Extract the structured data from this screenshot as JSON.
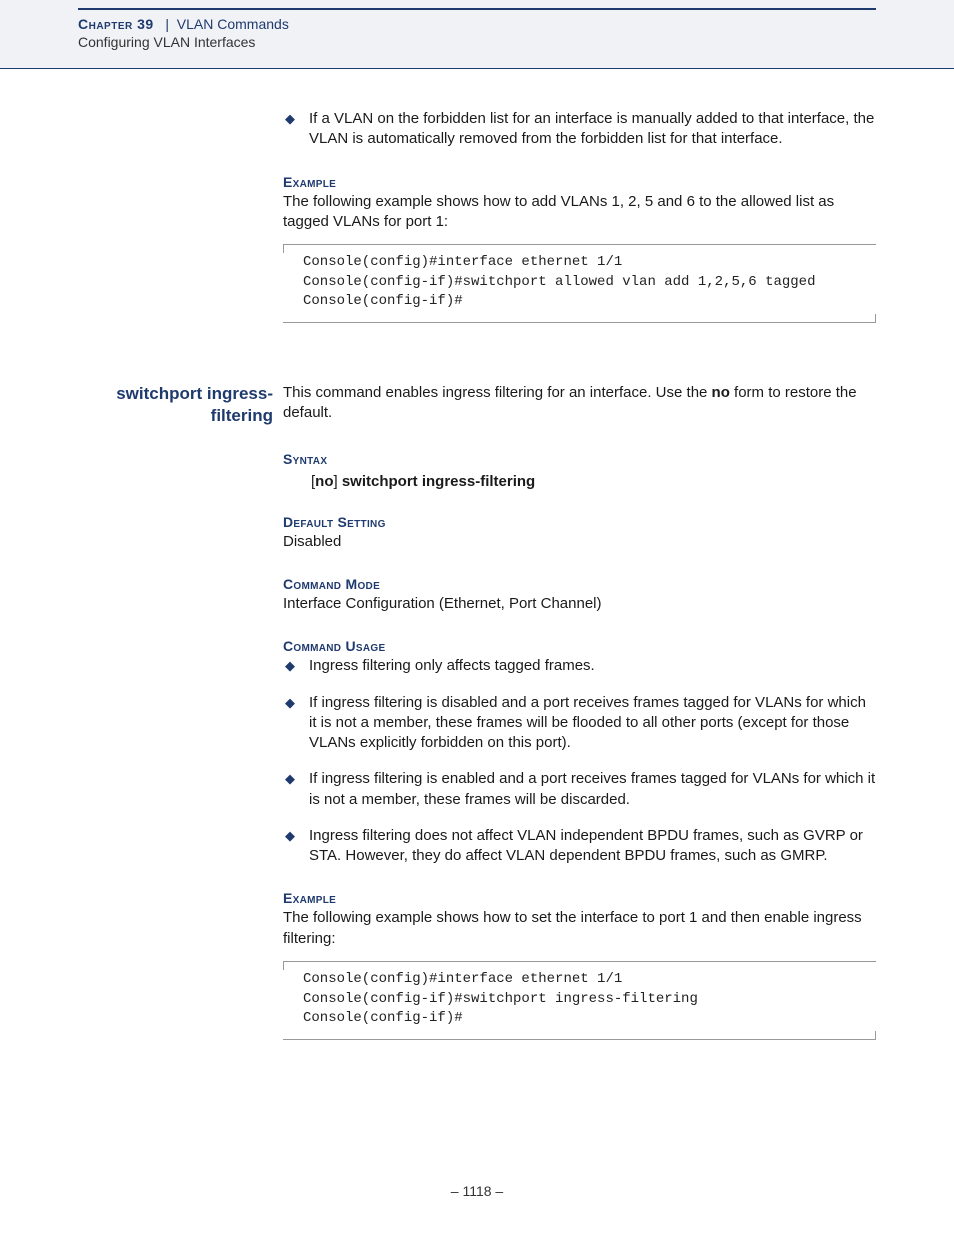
{
  "header": {
    "chapter_label": "Chapter 39",
    "separator": "|",
    "chapter_title": "VLAN Commands",
    "subtitle": "Configuring VLAN Interfaces"
  },
  "section1": {
    "bullet1": "If a VLAN on the forbidden list for an interface is manually added to that interface, the VLAN is automatically removed from the forbidden list for that interface.",
    "example_label": "Example",
    "example_intro": "The following example shows how to add VLANs 1, 2, 5 and 6 to the allowed list as tagged VLANs for port 1:",
    "code": "Console(config)#interface ethernet 1/1\nConsole(config-if)#switchport allowed vlan add 1,2,5,6 tagged\nConsole(config-if)#"
  },
  "command": {
    "name_line1": "switchport ingress-",
    "name_line2": "filtering",
    "desc_pre": "This command enables ingress filtering for an interface. Use the ",
    "desc_bold": "no",
    "desc_post": " form to restore the default.",
    "syntax_label": "Syntax",
    "syntax_br_open": "[",
    "syntax_no": "no",
    "syntax_br_close": "]",
    "syntax_rest": "switchport ingress-filtering",
    "default_label": "Default Setting",
    "default_value": "Disabled",
    "mode_label": "Command Mode",
    "mode_value": "Interface Configuration (Ethernet, Port Channel)",
    "usage_label": "Command Usage",
    "usage": [
      "Ingress filtering only affects tagged frames.",
      "If ingress filtering is disabled and a port receives frames tagged for VLANs for which it is not a member, these frames will be flooded to all other ports (except for those VLANs explicitly forbidden on this port).",
      "If ingress filtering is enabled and a port receives frames tagged for VLANs for which it is not a member, these frames will be discarded.",
      "Ingress filtering does not affect VLAN independent BPDU frames, such as GVRP or STA. However, they do affect VLAN dependent BPDU frames, such as GMRP."
    ],
    "example_label": "Example",
    "example_intro": "The following example shows how to set the interface to port 1 and then enable ingress filtering:",
    "code": "Console(config)#interface ethernet 1/1\nConsole(config-if)#switchport ingress-filtering\nConsole(config-if)#"
  },
  "footer": {
    "page_number": "–  1118  –"
  },
  "colors": {
    "accent": "#1f3a6e",
    "bg_band": "#f0f2f5",
    "text": "#1a1a1a",
    "rule": "#999999"
  }
}
